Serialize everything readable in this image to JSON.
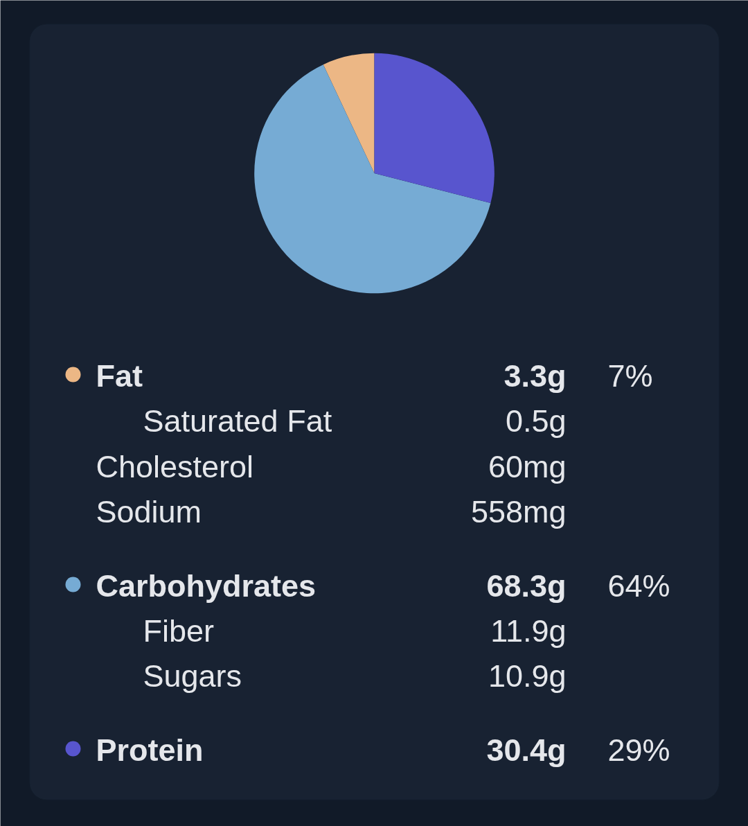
{
  "chart_data": {
    "type": "pie",
    "categories": [
      "Fat",
      "Carbohydrates",
      "Protein"
    ],
    "values": [
      7,
      64,
      29
    ],
    "colors": [
      "#ecb785",
      "#76abd4",
      "#5855ce"
    ],
    "value_labels": [
      "7%",
      "64%",
      "29%"
    ],
    "legend": "bottom",
    "annotations": [
      "3.3g",
      "Saturated Fat",
      "0.5g",
      "Cholesterol",
      "60mg",
      "Sodium",
      "558mg",
      "68.3g",
      "Fiber",
      "11.9g",
      "Sugars",
      "10.9g",
      "30.4g"
    ]
  }
}
